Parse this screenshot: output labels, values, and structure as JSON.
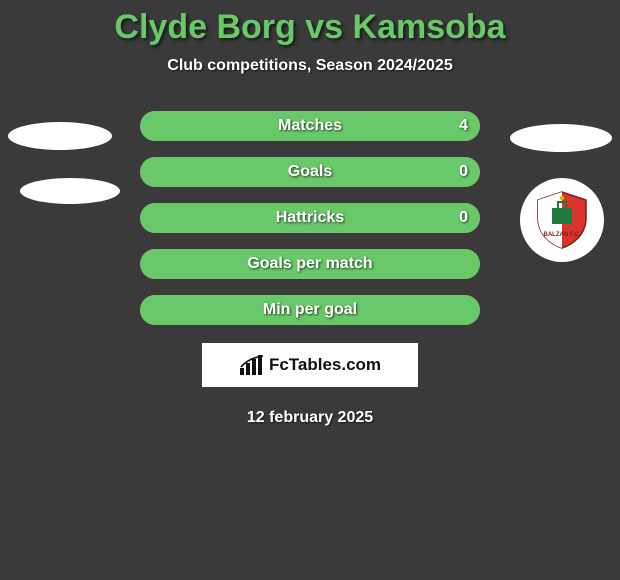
{
  "title": {
    "player1": "Clyde Borg",
    "vs": "vs",
    "player2": "Kamsoba",
    "color": "#69c869"
  },
  "subtitle": "Club competitions, Season 2024/2025",
  "stats": {
    "bar_background": "#bda255",
    "fill_color": "#69c869",
    "rows": [
      {
        "label": "Matches",
        "value": "4",
        "fill_pct": 100
      },
      {
        "label": "Goals",
        "value": "0",
        "fill_pct": 100
      },
      {
        "label": "Hattricks",
        "value": "0",
        "fill_pct": 100
      },
      {
        "label": "Goals per match",
        "value": "",
        "fill_pct": 100
      },
      {
        "label": "Min per goal",
        "value": "",
        "fill_pct": 100
      }
    ]
  },
  "club_badge": {
    "name": "Balzan FC",
    "primary": "#d9332b",
    "secondary": "#1f7a3e"
  },
  "brand": "FcTables.com",
  "date": "12 february 2025",
  "colors": {
    "page_bg": "#3a3a3a",
    "text": "#ffffff"
  }
}
